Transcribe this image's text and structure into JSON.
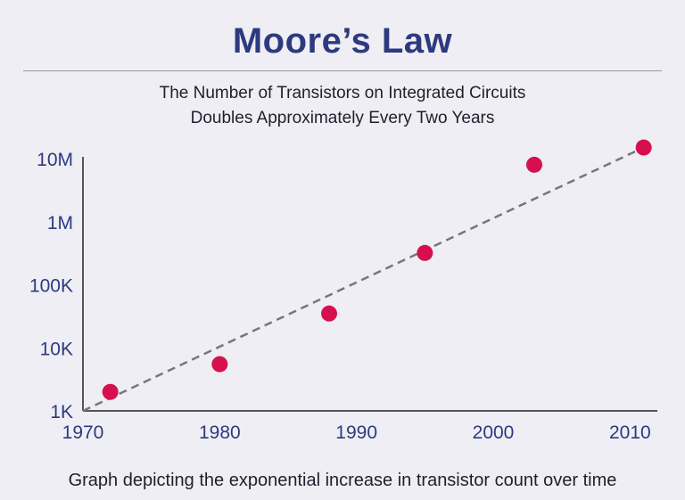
{
  "colors": {
    "title": "#2e3a7f",
    "tick_label": "#2e3a7f",
    "axis": "#555555",
    "point": "#d6104f",
    "trendline": "#777777"
  },
  "chart_data": {
    "type": "scatter",
    "title": "Moore’s Law",
    "subtitle_lines": [
      "The Number of Transistors on Integrated Circuits",
      "Doubles Approximately Every Two Years"
    ],
    "caption": "Graph depicting the exponential increase in transistor count over time",
    "x_scale": "linear",
    "y_scale": "log",
    "xlim": [
      1970,
      2012
    ],
    "ylim": [
      1000,
      10000000
    ],
    "x_ticks": [
      1970,
      1980,
      1990,
      2000,
      2010
    ],
    "x_tick_labels": [
      "1970",
      "1980",
      "1990",
      "2000",
      "2010"
    ],
    "y_ticks": [
      1000,
      10000,
      100000,
      1000000,
      10000000
    ],
    "y_tick_labels": [
      "1K",
      "10K",
      "100K",
      "1M",
      "10M"
    ],
    "points": [
      {
        "x": 1972,
        "y": 2000
      },
      {
        "x": 1980,
        "y": 5500
      },
      {
        "x": 1988,
        "y": 35000
      },
      {
        "x": 1995,
        "y": 320000
      },
      {
        "x": 2003,
        "y": 8000000
      },
      {
        "x": 2011,
        "y": 15000000
      }
    ],
    "trendline": {
      "style": "dashed",
      "from": {
        "x": 1970,
        "y": 1000
      },
      "to": {
        "x": 2011,
        "y": 15000000
      }
    },
    "grid": false,
    "legend": false
  }
}
